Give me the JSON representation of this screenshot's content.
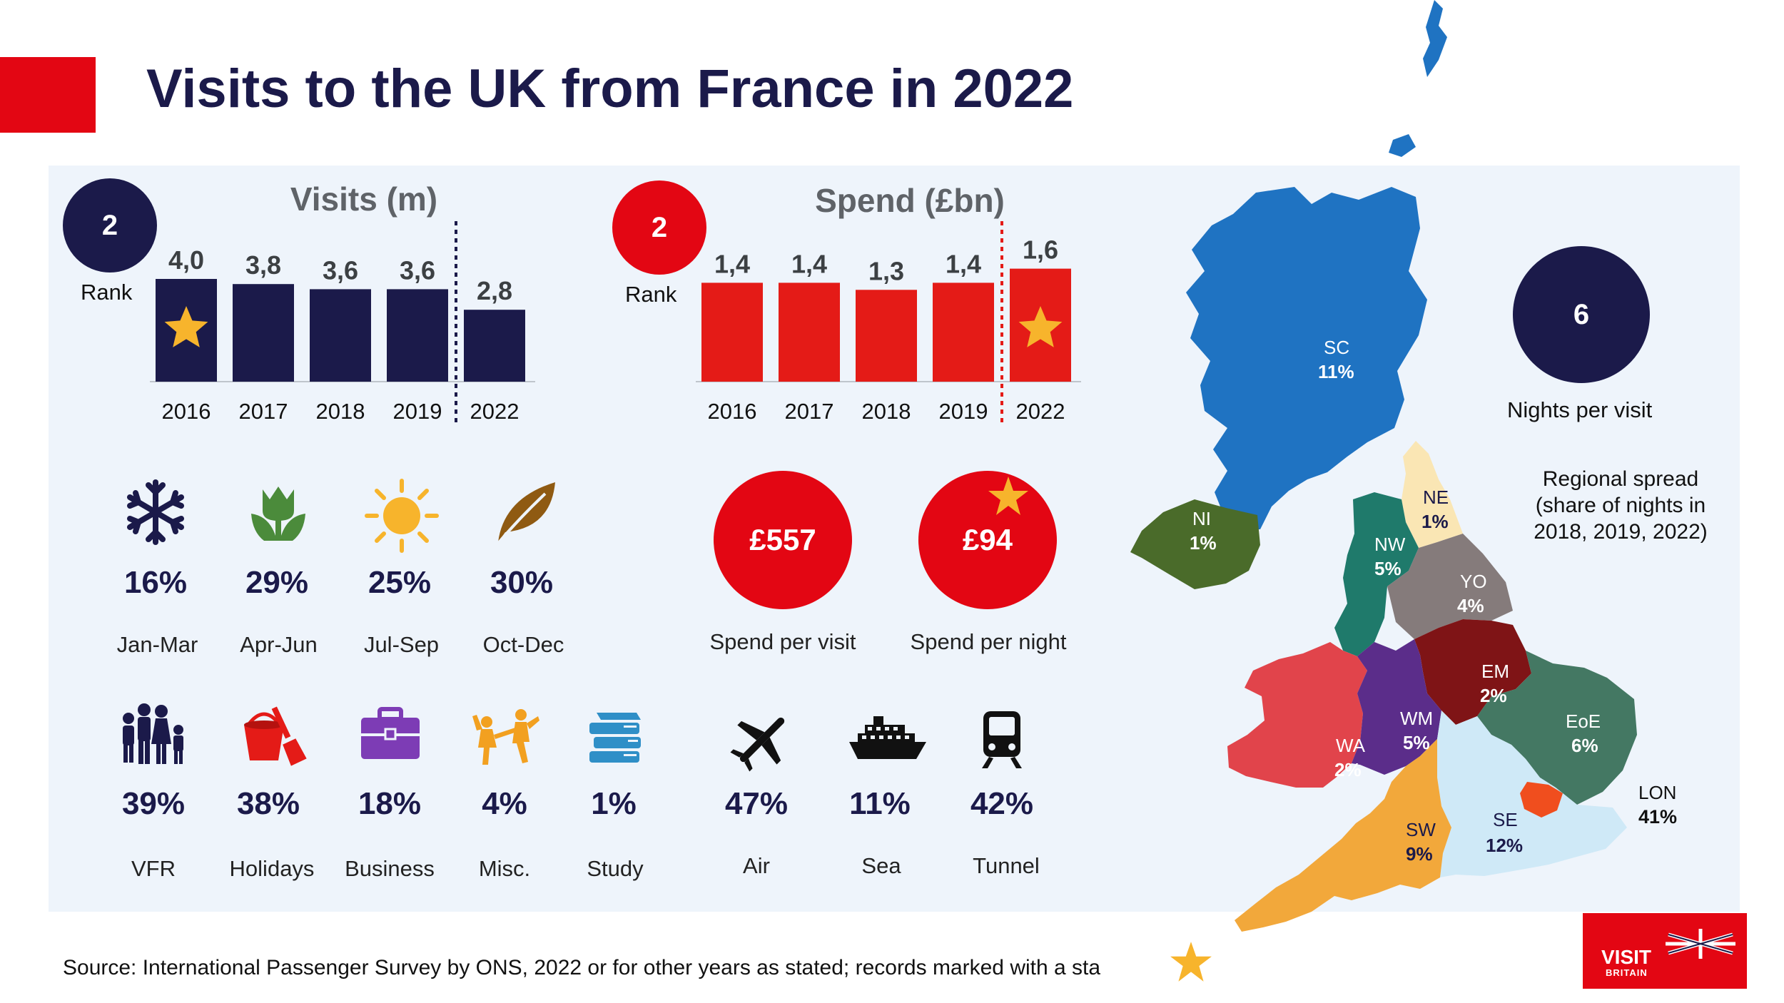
{
  "title": "Visits to the UK from France in 2022",
  "visits": {
    "title": "Visits (m)",
    "rank": "2",
    "rank_label": "Rank"
  },
  "spend": {
    "title": "Spend (£bn)",
    "rank": "2",
    "rank_label": "Rank"
  },
  "chart_data": [
    {
      "type": "bar",
      "title": "Visits (m)",
      "categories": [
        "2016",
        "2017",
        "2018",
        "2019",
        "2022"
      ],
      "values": [
        4.0,
        3.8,
        3.6,
        3.6,
        2.8
      ],
      "value_labels": [
        "4,0",
        "3,8",
        "3,6",
        "3,6",
        "2,8"
      ],
      "record_marker": "2016",
      "color": "#1b1a4a"
    },
    {
      "type": "bar",
      "title": "Spend (£bn)",
      "categories": [
        "2016",
        "2017",
        "2018",
        "2019",
        "2022"
      ],
      "values": [
        1.4,
        1.4,
        1.3,
        1.4,
        1.6
      ],
      "value_labels": [
        "1,4",
        "1,4",
        "1,3",
        "1,4",
        "1,6"
      ],
      "record_marker": "2022",
      "color": "#e41b17"
    }
  ],
  "seasons": [
    {
      "icon": "snowflake-icon",
      "value": "16%",
      "label": "Jan-Mar"
    },
    {
      "icon": "tulip-icon",
      "value": "29%",
      "label": "Apr-Jun"
    },
    {
      "icon": "sun-icon",
      "value": "25%",
      "label": "Jul-Sep"
    },
    {
      "icon": "leaf-icon",
      "value": "30%",
      "label": "Oct-Dec"
    }
  ],
  "purposes": [
    {
      "icon": "family-icon",
      "value": "39%",
      "label": "VFR"
    },
    {
      "icon": "bucket-spade-icon",
      "value": "38%",
      "label": "Holidays"
    },
    {
      "icon": "briefcase-icon",
      "value": "18%",
      "label": "Business"
    },
    {
      "icon": "dancers-icon",
      "value": "4%",
      "label": "Misc."
    },
    {
      "icon": "books-icon",
      "value": "1%",
      "label": "Study"
    }
  ],
  "transport": [
    {
      "icon": "plane-icon",
      "value": "47%",
      "label": "Air"
    },
    {
      "icon": "ship-icon",
      "value": "11%",
      "label": "Sea"
    },
    {
      "icon": "train-icon",
      "value": "42%",
      "label": "Tunnel"
    }
  ],
  "spend_per_visit": {
    "value": "£557",
    "label": "Spend per visit"
  },
  "spend_per_night": {
    "value": "£94",
    "label": "Spend per night"
  },
  "nights": {
    "value": "6",
    "label": "Nights per visit"
  },
  "regional": {
    "line1": "Regional spread",
    "line2": "(share of nights in",
    "line3": "2018, 2019, 2022)"
  },
  "regions": [
    {
      "code": "SC",
      "share": "11%",
      "color": "#1f73c2"
    },
    {
      "code": "NI",
      "share": "1%",
      "color": "#4a6b2a"
    },
    {
      "code": "NE",
      "share": "1%",
      "color": "#fae6b4"
    },
    {
      "code": "NW",
      "share": "5%",
      "color": "#1f7a6b"
    },
    {
      "code": "YO",
      "share": "4%",
      "color": "#857b7b"
    },
    {
      "code": "EM",
      "share": "2%",
      "color": "#7f1416"
    },
    {
      "code": "WA",
      "share": "2%",
      "color": "#e1444b"
    },
    {
      "code": "WM",
      "share": "5%",
      "color": "#5b2d8a"
    },
    {
      "code": "EoE",
      "share": "6%",
      "color": "#447863"
    },
    {
      "code": "LON",
      "share": "41%",
      "color": "#f04e1e"
    },
    {
      "code": "SE",
      "share": "12%",
      "color": "#cfe9f7"
    },
    {
      "code": "SW",
      "share": "9%",
      "color": "#f2a83b"
    }
  ],
  "source": "Source: International Passenger Survey by ONS, 2022 or for other years as stated; records marked with a sta",
  "brand": {
    "name": "VISIT",
    "sub": "BRITAIN"
  }
}
